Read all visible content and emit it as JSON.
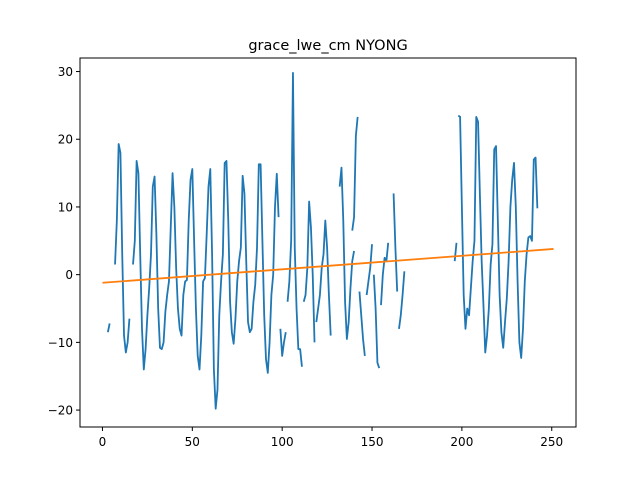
{
  "chart_data": {
    "type": "line",
    "title": "grace_lwe_cm NYONG",
    "xlabel": "",
    "ylabel": "",
    "xlim": [
      -12.5,
      263.5
    ],
    "ylim": [
      -22.5,
      32.0
    ],
    "grid": false,
    "legend": "none",
    "x_ticks": [
      0,
      50,
      100,
      150,
      200,
      250
    ],
    "y_ticks": [
      -20,
      -10,
      0,
      10,
      20,
      30
    ],
    "x_tick_labels": [
      "0",
      "50",
      "100",
      "150",
      "200",
      "250"
    ],
    "y_tick_labels": [
      "−20",
      "−10",
      "0",
      "10",
      "20",
      "30"
    ],
    "series": [
      {
        "color": "#1f77b4",
        "segments": [
          [
            [
              3,
              -8.5
            ],
            [
              4,
              -7.2
            ]
          ],
          [
            [
              7,
              1.5
            ],
            [
              8,
              8.0
            ],
            [
              9,
              19.3
            ],
            [
              10,
              18.0
            ],
            [
              11,
              3.0
            ],
            [
              12,
              -9.0
            ],
            [
              13,
              -11.5
            ],
            [
              14,
              -10.0
            ],
            [
              15,
              -6.5
            ]
          ],
          [
            [
              17,
              1.5
            ],
            [
              18,
              5.0
            ],
            [
              19,
              16.8
            ],
            [
              20,
              15.0
            ],
            [
              21,
              3.0
            ],
            [
              22,
              -8.0
            ],
            [
              23,
              -14.0
            ],
            [
              24,
              -11.0
            ],
            [
              25,
              -6.0
            ],
            [
              26,
              -2.0
            ],
            [
              27,
              3.0
            ],
            [
              28,
              13.0
            ],
            [
              29,
              14.5
            ],
            [
              30,
              6.0
            ],
            [
              31,
              -5.0
            ],
            [
              32,
              -10.8
            ],
            [
              33,
              -11.0
            ],
            [
              34,
              -10.0
            ],
            [
              35,
              -5.5
            ],
            [
              36,
              -3.0
            ],
            [
              37,
              -1.0
            ],
            [
              38,
              7.0
            ],
            [
              39,
              15.0
            ],
            [
              40,
              10.0
            ],
            [
              41,
              1.0
            ],
            [
              42,
              -5.0
            ],
            [
              43,
              -8.0
            ],
            [
              44,
              -9.0
            ],
            [
              45,
              -3.0
            ],
            [
              46,
              -1.0
            ],
            [
              47,
              -0.8
            ],
            [
              48,
              8.0
            ],
            [
              49,
              14.0
            ],
            [
              50,
              15.6
            ],
            [
              51,
              5.0
            ],
            [
              52,
              -5.0
            ],
            [
              53,
              -12.0
            ],
            [
              54,
              -14.0
            ],
            [
              55,
              -9.0
            ],
            [
              56,
              -1.0
            ],
            [
              57,
              -0.5
            ],
            [
              58,
              6.0
            ],
            [
              59,
              13.0
            ],
            [
              60,
              15.6
            ],
            [
              61,
              3.0
            ],
            [
              62,
              -14.0
            ],
            [
              63,
              -19.8
            ],
            [
              64,
              -17.0
            ],
            [
              65,
              -6.0
            ],
            [
              66,
              -1.0
            ],
            [
              67,
              3.0
            ],
            [
              68,
              16.5
            ],
            [
              69,
              16.8
            ],
            [
              70,
              8.0
            ],
            [
              71,
              -4.0
            ],
            [
              72,
              -8.5
            ],
            [
              73,
              -10.2
            ],
            [
              74,
              -6.5
            ],
            [
              75,
              -1.0
            ],
            [
              76,
              2.0
            ],
            [
              77,
              4.0
            ],
            [
              78,
              14.6
            ],
            [
              79,
              12.0
            ],
            [
              80,
              2.0
            ],
            [
              81,
              -7.0
            ],
            [
              82,
              -8.5
            ],
            [
              83,
              -8.0
            ],
            [
              84,
              -4.0
            ],
            [
              85,
              -1.5
            ],
            [
              86,
              4.0
            ],
            [
              87,
              16.3
            ],
            [
              88,
              16.3
            ],
            [
              89,
              5.0
            ],
            [
              90,
              -6.0
            ],
            [
              91,
              -12.5
            ],
            [
              92,
              -14.5
            ],
            [
              93,
              -10.0
            ],
            [
              94,
              -3.0
            ],
            [
              95,
              0.0
            ],
            [
              96,
              10.0
            ],
            [
              97,
              14.9
            ],
            [
              98,
              8.5
            ]
          ],
          [
            [
              99,
              -8.0
            ],
            [
              100,
              -12.0
            ],
            [
              101,
              -10.0
            ],
            [
              102,
              -8.5
            ]
          ],
          [
            [
              103,
              -4.0
            ],
            [
              104,
              -1.0
            ],
            [
              105,
              5.0
            ],
            [
              106,
              29.8
            ],
            [
              107,
              4.0
            ],
            [
              108,
              -5.0
            ],
            [
              109,
              -11.0
            ],
            [
              110,
              -11.0
            ],
            [
              111,
              -13.6
            ]
          ],
          [
            [
              112,
              -4.0
            ],
            [
              113,
              -3.0
            ],
            [
              114,
              1.0
            ],
            [
              115,
              10.8
            ],
            [
              116,
              7.0
            ],
            [
              117,
              0.0
            ],
            [
              118,
              -10.0
            ]
          ],
          [
            [
              119,
              -7.0
            ],
            [
              120,
              -5.0
            ],
            [
              121,
              -3.0
            ],
            [
              122,
              1.0
            ],
            [
              123,
              3.0
            ],
            [
              124,
              8.0
            ],
            [
              125,
              4.0
            ],
            [
              126,
              -3.0
            ],
            [
              127,
              -9.0
            ]
          ],
          [
            [
              132,
              13.0
            ],
            [
              133,
              15.8
            ],
            [
              134,
              8.0
            ],
            [
              135,
              -4.0
            ],
            [
              136,
              -9.5
            ],
            [
              137,
              -7.0
            ],
            [
              138,
              -2.0
            ],
            [
              139,
              2.0
            ],
            [
              140,
              3.5
            ]
          ],
          [
            [
              139,
              6.5
            ],
            [
              140,
              8.5
            ],
            [
              141,
              20.5
            ],
            [
              142,
              23.3
            ]
          ],
          [
            [
              143,
              -2.5
            ],
            [
              144,
              -6.0
            ],
            [
              145,
              -9.5
            ],
            [
              146,
              -12.0
            ]
          ],
          [
            [
              147,
              -3.0
            ],
            [
              148,
              -1.0
            ],
            [
              149,
              1.0
            ],
            [
              150,
              4.5
            ]
          ],
          [
            [
              151,
              0.0
            ],
            [
              152,
              -5.0
            ],
            [
              153,
              -13.0
            ],
            [
              154,
              -13.8
            ]
          ],
          [
            [
              155,
              -4.5
            ],
            [
              156,
              0.0
            ],
            [
              157,
              2.5
            ],
            [
              158,
              2.0
            ],
            [
              159,
              4.7
            ]
          ],
          [
            [
              162,
              12.0
            ],
            [
              163,
              4.0
            ],
            [
              164,
              -2.5
            ]
          ],
          [
            [
              165,
              -8.0
            ],
            [
              166,
              -6.0
            ],
            [
              167,
              -3.0
            ],
            [
              168,
              0.5
            ]
          ],
          [
            [
              196,
              2.0
            ],
            [
              197,
              4.7
            ]
          ],
          [
            [
              198,
              23.5
            ],
            [
              199,
              23.3
            ],
            [
              200,
              10.0
            ],
            [
              201,
              -3.0
            ],
            [
              202,
              -8.0
            ],
            [
              203,
              -5.0
            ],
            [
              204,
              -6.0
            ],
            [
              205,
              -2.0
            ],
            [
              206,
              2.0
            ],
            [
              207,
              5.0
            ],
            [
              208,
              23.3
            ],
            [
              209,
              22.6
            ],
            [
              210,
              12.0
            ],
            [
              211,
              2.0
            ],
            [
              212,
              -4.5
            ],
            [
              213,
              -11.5
            ],
            [
              214,
              -9.0
            ],
            [
              215,
              -5.0
            ],
            [
              216,
              1.5
            ],
            [
              217,
              4.5
            ],
            [
              218,
              18.5
            ],
            [
              219,
              19.0
            ],
            [
              220,
              8.0
            ],
            [
              221,
              -3.0
            ],
            [
              222,
              -8.5
            ],
            [
              223,
              -10.8
            ],
            [
              224,
              -7.0
            ],
            [
              225,
              -3.5
            ],
            [
              226,
              2.0
            ],
            [
              227,
              10.0
            ],
            [
              228,
              14.0
            ],
            [
              229,
              16.5
            ],
            [
              230,
              10.0
            ],
            [
              231,
              -1.0
            ],
            [
              232,
              -10.0
            ],
            [
              233,
              -12.3
            ],
            [
              234,
              -8.0
            ],
            [
              235,
              -1.0
            ],
            [
              236,
              3.0
            ],
            [
              237,
              5.5
            ],
            [
              238,
              5.7
            ],
            [
              239,
              5.0
            ],
            [
              240,
              17.0
            ],
            [
              241,
              17.3
            ],
            [
              242,
              9.8
            ]
          ]
        ]
      },
      {
        "color": "#ff7f0e",
        "segments": [
          [
            [
              0,
              -1.2
            ],
            [
              251,
              3.8
            ]
          ]
        ]
      }
    ]
  }
}
